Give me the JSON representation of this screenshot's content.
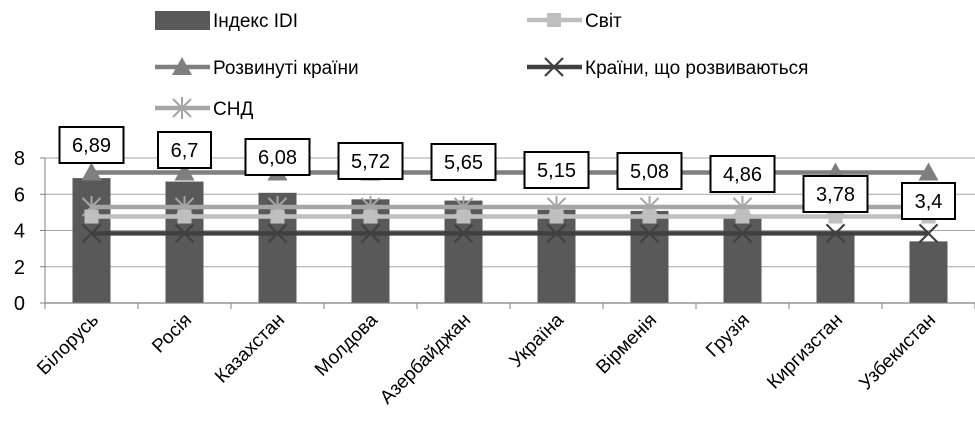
{
  "chart_data": {
    "type": "bar",
    "categories": [
      "Білорусь",
      "Росія",
      "Казахстан",
      "Молдова",
      "Азербайджан",
      "Україна",
      "Вірменія",
      "Грузія",
      "Киргизстан",
      "Узбекистан"
    ],
    "series": [
      {
        "name": "Індекс IDI",
        "kind": "bar",
        "color": "#595959",
        "values": [
          6.89,
          6.7,
          6.08,
          5.72,
          5.65,
          5.15,
          5.08,
          4.86,
          3.78,
          3.4
        ]
      },
      {
        "name": "Світ",
        "kind": "line",
        "marker": "square",
        "color": "#bfbfbf",
        "value": 4.77
      },
      {
        "name": "Розвинуті країни",
        "kind": "line",
        "marker": "triangle",
        "color": "#7f7f7f",
        "value": 7.2
      },
      {
        "name": "Країни, що розвиваються",
        "kind": "line",
        "marker": "x",
        "color": "#404040",
        "value": 3.84
      },
      {
        "name": "СНД",
        "kind": "line",
        "marker": "asterisk",
        "color": "#a6a6a6",
        "value": 5.3
      }
    ],
    "data_labels": [
      "6,89",
      "6,7",
      "6,08",
      "5,72",
      "5,65",
      "5,15",
      "5,08",
      "4,86",
      "3,78",
      "3,4"
    ],
    "title": "",
    "xlabel": "",
    "ylabel": "",
    "ylim": [
      0,
      8
    ],
    "yticks": [
      "0",
      "2",
      "4",
      "6",
      "8"
    ],
    "grid": true,
    "legend_position": "top"
  }
}
